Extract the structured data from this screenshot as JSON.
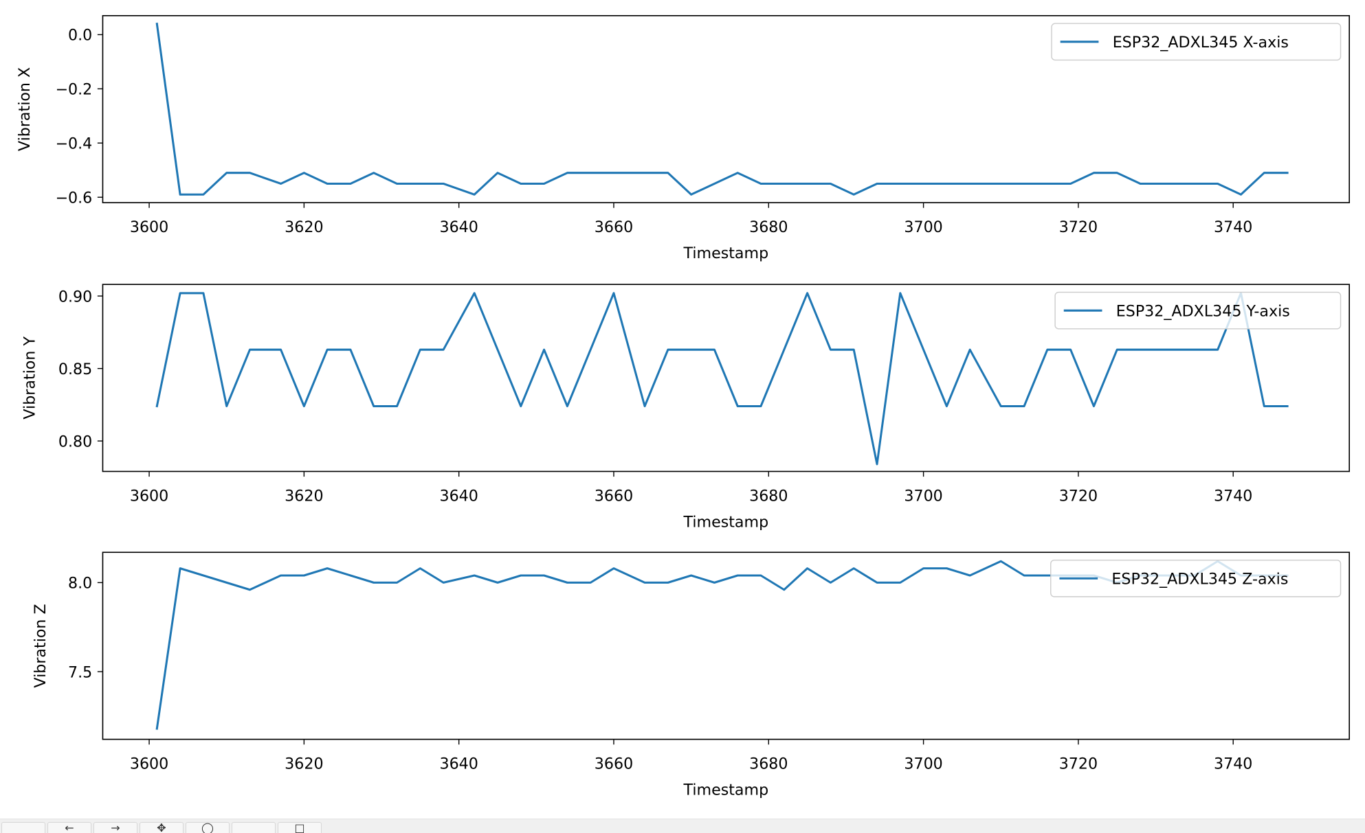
{
  "chart_data": [
    {
      "type": "line",
      "xlabel": "Timestamp",
      "ylabel": "Vibration X",
      "xlim": [
        3594,
        3755
      ],
      "ylim": [
        -0.62,
        0.07
      ],
      "xticks": [
        3600,
        3620,
        3640,
        3660,
        3680,
        3700,
        3720,
        3740
      ],
      "xtick_labels": [
        "3600",
        "3620",
        "3640",
        "3660",
        "3680",
        "3700",
        "3720",
        "3740"
      ],
      "yticks": [
        0.0,
        -0.2,
        -0.4,
        -0.6
      ],
      "ytick_labels": [
        "0.0",
        "−0.2",
        "−0.4",
        "−0.6"
      ],
      "grid": false,
      "legend": "top-right",
      "series": [
        {
          "name": "ESP32_ADXL345 X-axis",
          "color": "#1f77b4",
          "x": [
            3601,
            3604,
            3607,
            3610,
            3613,
            3617,
            3620,
            3623,
            3626,
            3629,
            3632,
            3635,
            3638,
            3642,
            3645,
            3648,
            3651,
            3654,
            3657,
            3660,
            3664,
            3667,
            3670,
            3673,
            3676,
            3679,
            3682,
            3685,
            3688,
            3691,
            3694,
            3697,
            3700,
            3703,
            3706,
            3710,
            3713,
            3716,
            3719,
            3722,
            3725,
            3728,
            3732,
            3735,
            3738,
            3741,
            3744,
            3747
          ],
          "y": [
            0.04,
            -0.59,
            -0.59,
            -0.51,
            -0.51,
            -0.55,
            -0.51,
            -0.55,
            -0.55,
            -0.51,
            -0.55,
            -0.55,
            -0.55,
            -0.59,
            -0.51,
            -0.55,
            -0.55,
            -0.51,
            -0.51,
            -0.51,
            -0.51,
            -0.51,
            -0.59,
            -0.55,
            -0.51,
            -0.55,
            -0.55,
            -0.55,
            -0.55,
            -0.59,
            -0.55,
            -0.55,
            -0.55,
            -0.55,
            -0.55,
            -0.55,
            -0.55,
            -0.55,
            -0.55,
            -0.51,
            -0.51,
            -0.55,
            -0.55,
            -0.55,
            -0.55,
            -0.59,
            -0.51,
            -0.51
          ]
        }
      ]
    },
    {
      "type": "line",
      "xlabel": "Timestamp",
      "ylabel": "Vibration Y",
      "xlim": [
        3594,
        3755
      ],
      "ylim": [
        0.779,
        0.908
      ],
      "xticks": [
        3600,
        3620,
        3640,
        3660,
        3680,
        3700,
        3720,
        3740
      ],
      "xtick_labels": [
        "3600",
        "3620",
        "3640",
        "3660",
        "3680",
        "3700",
        "3720",
        "3740"
      ],
      "yticks": [
        0.9,
        0.85,
        0.8
      ],
      "ytick_labels": [
        "0.90",
        "0.85",
        "0.80"
      ],
      "grid": false,
      "legend": "top-right",
      "series": [
        {
          "name": "ESP32_ADXL345 Y-axis",
          "color": "#1f77b4",
          "x": [
            3601,
            3604,
            3607,
            3610,
            3613,
            3617,
            3620,
            3623,
            3626,
            3629,
            3632,
            3635,
            3638,
            3642,
            3645,
            3648,
            3651,
            3654,
            3657,
            3660,
            3664,
            3667,
            3670,
            3673,
            3676,
            3679,
            3682,
            3685,
            3688,
            3691,
            3694,
            3697,
            3700,
            3703,
            3706,
            3710,
            3713,
            3716,
            3719,
            3722,
            3725,
            3728,
            3732,
            3735,
            3738,
            3741,
            3744,
            3747
          ],
          "y": [
            0.824,
            0.902,
            0.902,
            0.824,
            0.863,
            0.863,
            0.824,
            0.863,
            0.863,
            0.824,
            0.824,
            0.863,
            0.863,
            0.902,
            0.863,
            0.824,
            0.863,
            0.824,
            0.863,
            0.902,
            0.824,
            0.863,
            0.863,
            0.863,
            0.824,
            0.824,
            0.863,
            0.902,
            0.863,
            0.863,
            0.784,
            0.902,
            0.863,
            0.824,
            0.863,
            0.824,
            0.824,
            0.863,
            0.863,
            0.824,
            0.863,
            0.863,
            0.863,
            0.863,
            0.863,
            0.902,
            0.824,
            0.824
          ]
        }
      ]
    },
    {
      "type": "line",
      "xlabel": "Timestamp",
      "ylabel": "Vibration Z",
      "xlim": [
        3594,
        3755
      ],
      "ylim": [
        7.12,
        8.17
      ],
      "xticks": [
        3600,
        3620,
        3640,
        3660,
        3680,
        3700,
        3720,
        3740
      ],
      "xtick_labels": [
        "3600",
        "3620",
        "3640",
        "3660",
        "3680",
        "3700",
        "3720",
        "3740"
      ],
      "yticks": [
        8.0,
        7.5
      ],
      "ytick_labels": [
        "8.0",
        "7.5"
      ],
      "grid": false,
      "legend": "top-right",
      "series": [
        {
          "name": "ESP32_ADXL345 Z-axis",
          "color": "#1f77b4",
          "x": [
            3601,
            3604,
            3607,
            3610,
            3613,
            3617,
            3620,
            3623,
            3626,
            3629,
            3632,
            3635,
            3638,
            3642,
            3645,
            3648,
            3651,
            3654,
            3657,
            3660,
            3664,
            3667,
            3670,
            3673,
            3676,
            3679,
            3682,
            3685,
            3688,
            3691,
            3694,
            3697,
            3700,
            3703,
            3706,
            3710,
            3713,
            3716,
            3719,
            3722,
            3725,
            3728,
            3732,
            3735,
            3738,
            3741,
            3744,
            3747
          ],
          "y": [
            7.18,
            8.08,
            8.04,
            8.0,
            7.96,
            8.04,
            8.04,
            8.08,
            8.04,
            8.0,
            8.0,
            8.08,
            8.0,
            8.04,
            8.0,
            8.04,
            8.04,
            8.0,
            8.0,
            8.08,
            8.0,
            8.0,
            8.04,
            8.0,
            8.04,
            8.04,
            7.96,
            8.08,
            8.0,
            8.08,
            8.0,
            8.0,
            8.08,
            8.08,
            8.04,
            8.12,
            8.04,
            8.04,
            8.04,
            8.04,
            8.0,
            8.04,
            8.04,
            8.04,
            8.12,
            8.04,
            8.04,
            8.04
          ]
        }
      ]
    }
  ],
  "toolbar": {
    "buttons": [
      {
        "name": "home-icon",
        "glyph": ""
      },
      {
        "name": "back-arrow-icon",
        "glyph": "←"
      },
      {
        "name": "forward-arrow-icon",
        "glyph": "→"
      },
      {
        "name": "pan-icon",
        "glyph": "✥"
      },
      {
        "name": "zoom-icon",
        "glyph": "◯"
      },
      {
        "name": "configure-subplots-icon",
        "glyph": ""
      },
      {
        "name": "save-icon",
        "glyph": "□"
      }
    ]
  }
}
